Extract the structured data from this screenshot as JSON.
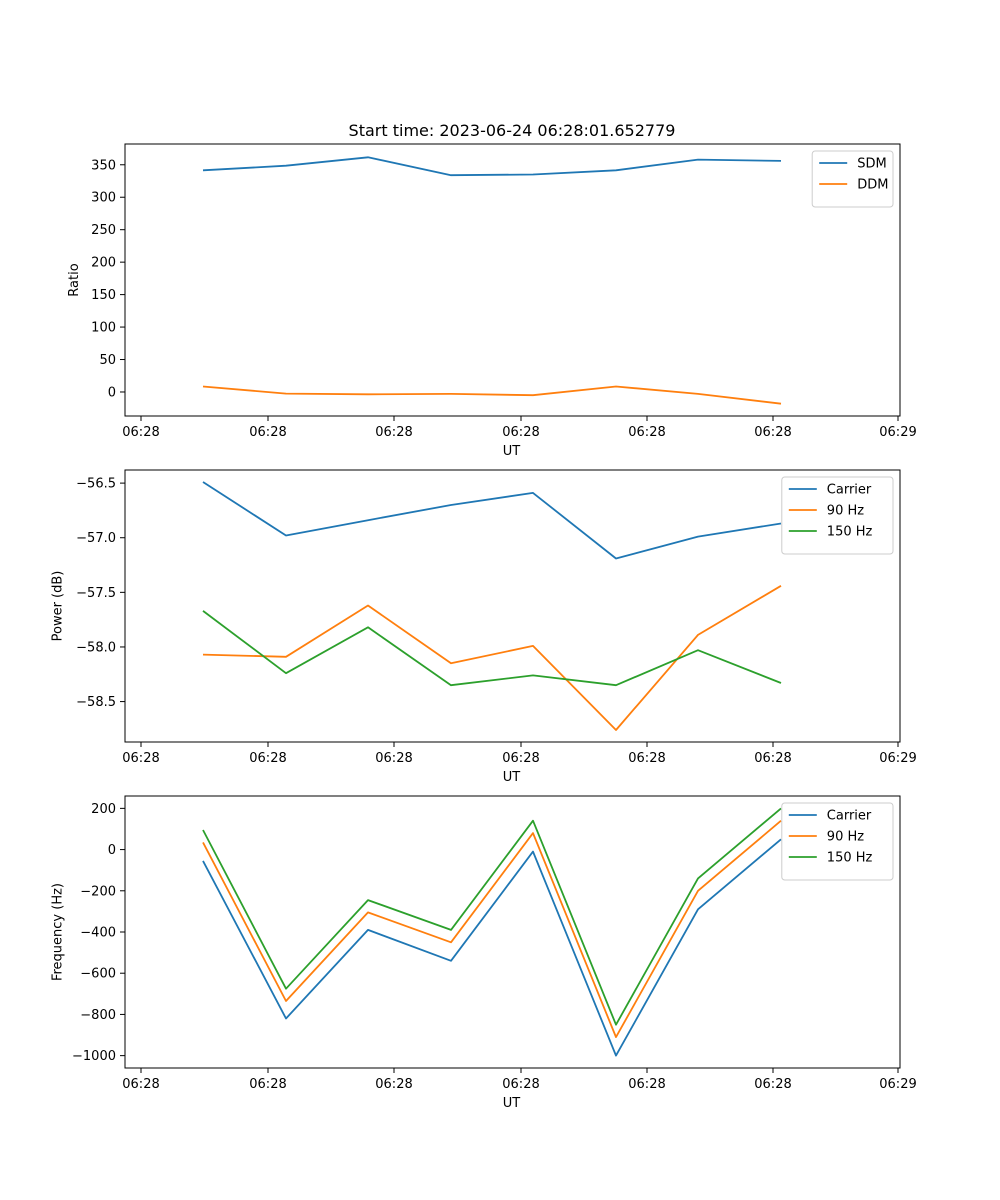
{
  "figure_title": "Start time: 2023-06-24 06:28:01.652779",
  "colors": {
    "blue": "#1f77b4",
    "orange": "#ff7f0e",
    "green": "#2ca02c"
  },
  "chart_data": [
    {
      "type": "line",
      "title": "Start time: 2023-06-24 06:28:01.652779",
      "xlabel": "UT",
      "ylabel": "Ratio",
      "x_tick_labels": [
        "06:28",
        "06:28",
        "06:28",
        "06:28",
        "06:28",
        "06:28",
        "06:29"
      ],
      "y_ticks": [
        0,
        50,
        100,
        150,
        200,
        250,
        300,
        350
      ],
      "ylim": [
        -37,
        382
      ],
      "legend_position": "top-right",
      "grid": false,
      "series": [
        {
          "name": "SDM",
          "color": "#1f77b4",
          "values": [
            341.5,
            348.5,
            361.5,
            334,
            335,
            341.5,
            358,
            356
          ]
        },
        {
          "name": "DDM",
          "color": "#ff7f0e",
          "values": [
            8.5,
            -2.5,
            -3.5,
            -3,
            -5,
            8.5,
            -3,
            -18
          ]
        }
      ]
    },
    {
      "type": "line",
      "title": "",
      "xlabel": "UT",
      "ylabel": "Power (dB)",
      "x_tick_labels": [
        "06:28",
        "06:28",
        "06:28",
        "06:28",
        "06:28",
        "06:28",
        "06:29"
      ],
      "y_ticks": [
        -58.5,
        -58.0,
        -57.5,
        -57.0,
        -56.5
      ],
      "y_tick_labels": [
        "−58.5",
        "−58.0",
        "−57.5",
        "−57.0",
        "−56.5"
      ],
      "ylim": [
        -58.87,
        -56.38
      ],
      "legend_position": "top-right",
      "grid": false,
      "series": [
        {
          "name": "Carrier",
          "color": "#1f77b4",
          "values": [
            -56.49,
            -56.98,
            -56.84,
            -56.7,
            -56.59,
            -57.19,
            -56.99,
            -56.87
          ]
        },
        {
          "name": "90 Hz",
          "color": "#ff7f0e",
          "values": [
            -58.07,
            -58.09,
            -57.62,
            -58.15,
            -57.99,
            -58.76,
            -57.89,
            -57.44
          ]
        },
        {
          "name": "150 Hz",
          "color": "#2ca02c",
          "values": [
            -57.67,
            -58.24,
            -57.82,
            -58.35,
            -58.26,
            -58.35,
            -58.03,
            -58.33
          ]
        }
      ]
    },
    {
      "type": "line",
      "title": "",
      "xlabel": "UT",
      "ylabel": "Frequency (Hz)",
      "x_tick_labels": [
        "06:28",
        "06:28",
        "06:28",
        "06:28",
        "06:28",
        "06:28",
        "06:29"
      ],
      "y_ticks": [
        -1000,
        -800,
        -600,
        -400,
        -200,
        0,
        200
      ],
      "y_tick_labels": [
        "−1000",
        "−800",
        "−600",
        "−400",
        "−200",
        "0",
        "200"
      ],
      "ylim": [
        -1060,
        260
      ],
      "legend_position": "top-right",
      "grid": false,
      "series": [
        {
          "name": "Carrier",
          "color": "#1f77b4",
          "values": [
            -55,
            -820,
            -390,
            -540,
            -10,
            -1000,
            -290,
            50
          ]
        },
        {
          "name": "90 Hz",
          "color": "#ff7f0e",
          "values": [
            35,
            -735,
            -305,
            -450,
            80,
            -910,
            -200,
            140
          ]
        },
        {
          "name": "150 Hz",
          "color": "#2ca02c",
          "values": [
            95,
            -675,
            -245,
            -390,
            140,
            -850,
            -140,
            200
          ]
        }
      ]
    }
  ]
}
